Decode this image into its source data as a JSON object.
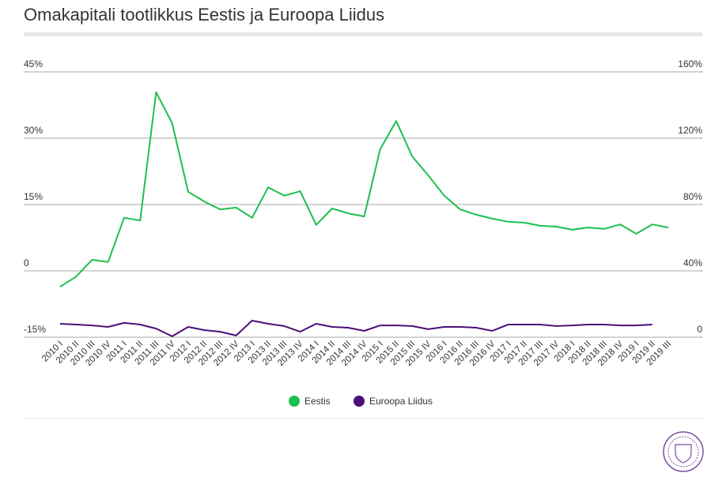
{
  "chart_data": {
    "type": "line",
    "title": "Omakapitali tootlikkus Eestis ja Euroopa Liidus",
    "categories": [
      "2010 I",
      "2010 II",
      "2010 III",
      "2010 IV",
      "2011 I",
      "2011 II",
      "2011 III",
      "2011 IV",
      "2012 I",
      "2012 II",
      "2012 III",
      "2012 IV",
      "2013 I",
      "2013 II",
      "2013 III",
      "2013 IV",
      "2014 I",
      "2014 II",
      "2014 III",
      "2014 IV",
      "2015 I",
      "2015 II",
      "2015 III",
      "2015 IV",
      "2016 I",
      "2016 II",
      "2016 III",
      "2016 IV",
      "2017 I",
      "2017 II",
      "2017 III",
      "2017 IV",
      "2018 I",
      "2018 II",
      "2018 III",
      "2018 IV",
      "2019 I",
      "2019 II",
      "2019 III"
    ],
    "series": [
      {
        "name": "Eestis",
        "color": "#1dbf4e",
        "axis": "y",
        "values": [
          -3.6,
          -1.3,
          2.5,
          2.0,
          12.0,
          11.4,
          40.4,
          33.4,
          17.9,
          15.7,
          13.9,
          14.3,
          12.0,
          18.9,
          17.0,
          18.0,
          10.4,
          14.1,
          13.0,
          12.3,
          27.5,
          33.9,
          25.9,
          21.6,
          17.0,
          13.9,
          12.7,
          11.8,
          11.1,
          10.9,
          10.2,
          10.0,
          9.3,
          9.8,
          9.5,
          10.5,
          8.4,
          10.5,
          9.8
        ]
      },
      {
        "name": "Euroopa Liidus",
        "color": "#4b0f7a",
        "axis": "y2",
        "values": [
          8.1,
          7.6,
          7.1,
          6.2,
          8.6,
          7.6,
          5.2,
          0.5,
          6.2,
          4.3,
          3.3,
          1.0,
          10.0,
          8.1,
          6.7,
          3.3,
          8.1,
          6.2,
          5.7,
          3.8,
          7.1,
          7.1,
          6.7,
          4.8,
          6.2,
          6.2,
          5.7,
          3.8,
          7.6,
          7.6,
          7.6,
          6.7,
          7.1,
          7.6,
          7.6,
          7.1,
          7.1,
          7.6,
          null
        ]
      }
    ],
    "ylim": [
      -15,
      45
    ],
    "yticks": [
      {
        "value": -15,
        "label": "-15%"
      },
      0,
      {
        "value": 15,
        "label": "15%"
      },
      {
        "value": 30,
        "label": "30%"
      },
      {
        "value": 45,
        "label": "45%"
      }
    ],
    "y2lim": [
      0,
      160
    ],
    "y2ticks": [
      0,
      {
        "value": 40,
        "label": "40%"
      },
      {
        "value": 80,
        "label": "80%"
      },
      {
        "value": 120,
        "label": "120%"
      },
      {
        "value": 160,
        "label": "160%"
      }
    ],
    "grid": true,
    "legend": "bottom"
  }
}
